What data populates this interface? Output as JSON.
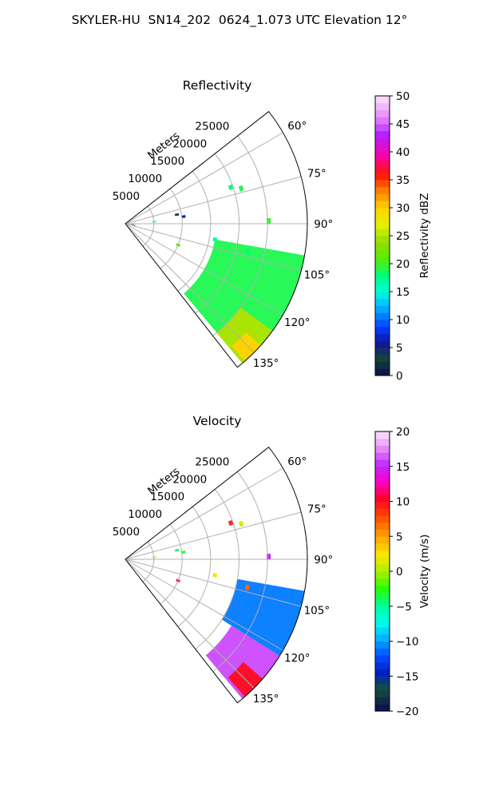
{
  "figure": {
    "title": "SKYLER-HU  SN14_202  0624_1.073 UTC Elevation 12°"
  },
  "chart_data": [
    {
      "type": "heatmap",
      "subtype": "polar-sector-ppi",
      "title": "Reflectivity",
      "range_axis_label": "Meters",
      "range_ticks": [
        5000,
        10000,
        15000,
        20000,
        25000
      ],
      "range_max": 32000,
      "azimuth_ticks": [
        "60°",
        "75°",
        "90°",
        "105°",
        "120°",
        "135°"
      ],
      "azimuth_tick_values": [
        60,
        75,
        90,
        105,
        120,
        135
      ],
      "azimuth_range": [
        52,
        142
      ],
      "grid": true,
      "colorbar": {
        "label": "Reflectivity dBZ",
        "min": 0,
        "max": 50,
        "ticks": [
          "0",
          "5",
          "10",
          "15",
          "20",
          "25",
          "30",
          "35",
          "40",
          "45",
          "50"
        ],
        "tick_values": [
          0,
          5,
          10,
          15,
          20,
          25,
          30,
          35,
          40,
          45,
          50
        ],
        "colormap": "pyart_HomeyerRainbow_like"
      },
      "echo_regions": [
        {
          "name": "main-echo",
          "az_from": 100,
          "az_to": 140,
          "range_from": 16000,
          "range_to": 32000,
          "value": 19
        },
        {
          "name": "main-core",
          "az_from": 126,
          "az_to": 140,
          "range_from": 25000,
          "range_to": 32000,
          "value": 25
        },
        {
          "name": "strong-core",
          "az_from": 132,
          "az_to": 139,
          "range_from": 28500,
          "range_to": 32000,
          "value": 30
        }
      ],
      "echo_points": [
        {
          "az": 71,
          "range": 19600,
          "value": 18
        },
        {
          "az": 73,
          "range": 21300,
          "value": 19
        },
        {
          "az": 80,
          "range": 9200,
          "value": 4
        },
        {
          "az": 83,
          "range": 10300,
          "value": 6
        },
        {
          "az": 86,
          "range": 5100,
          "value": 16
        },
        {
          "az": 89,
          "range": 25200,
          "value": 20
        },
        {
          "az": 100,
          "range": 16000,
          "value": 17
        },
        {
          "az": 103,
          "range": 22000,
          "value": 18
        },
        {
          "az": 112,
          "range": 10000,
          "value": 21
        },
        {
          "az": 95,
          "range": 1200,
          "value": 8
        },
        {
          "az": 100,
          "range": 1500,
          "value": 3
        }
      ]
    },
    {
      "type": "heatmap",
      "subtype": "polar-sector-ppi",
      "title": "Velocity",
      "range_axis_label": "Meters",
      "range_ticks": [
        5000,
        10000,
        15000,
        20000,
        25000
      ],
      "range_max": 32000,
      "azimuth_ticks": [
        "60°",
        "75°",
        "90°",
        "105°",
        "120°",
        "135°"
      ],
      "azimuth_tick_values": [
        60,
        75,
        90,
        105,
        120,
        135
      ],
      "azimuth_range": [
        52,
        142
      ],
      "grid": true,
      "colorbar": {
        "label": "Velocity (m/s)",
        "min": -20,
        "max": 20,
        "ticks": [
          "−20",
          "−15",
          "−10",
          "−5",
          "0",
          "5",
          "10",
          "15",
          "20"
        ],
        "tick_values": [
          -20,
          -15,
          -10,
          -5,
          0,
          5,
          10,
          15,
          20
        ],
        "colormap": "pyart_BuDRd18_like"
      },
      "echo_regions": [
        {
          "name": "main-echo",
          "az_from": 100,
          "az_to": 122,
          "range_from": 20000,
          "range_to": 32000,
          "value": -11
        },
        {
          "name": "inner-echo",
          "az_from": 122,
          "az_to": 140,
          "range_from": 22000,
          "range_to": 32000,
          "value": 16
        },
        {
          "name": "outbound-core",
          "az_from": 131,
          "az_to": 139,
          "range_from": 27500,
          "range_to": 32000,
          "value": 10
        }
      ],
      "echo_points": [
        {
          "az": 71,
          "range": 19600,
          "value": 9
        },
        {
          "az": 73,
          "range": 21300,
          "value": 1
        },
        {
          "az": 80,
          "range": 9200,
          "value": -4
        },
        {
          "az": 83,
          "range": 10300,
          "value": -3
        },
        {
          "az": 86,
          "range": 5100,
          "value": 1
        },
        {
          "az": 89,
          "range": 25200,
          "value": 15
        },
        {
          "az": 100,
          "range": 16000,
          "value": 2
        },
        {
          "az": 103,
          "range": 22000,
          "value": 7
        },
        {
          "az": 112,
          "range": 10000,
          "value": 11
        },
        {
          "az": 95,
          "range": 1200,
          "value": 2
        }
      ]
    }
  ]
}
